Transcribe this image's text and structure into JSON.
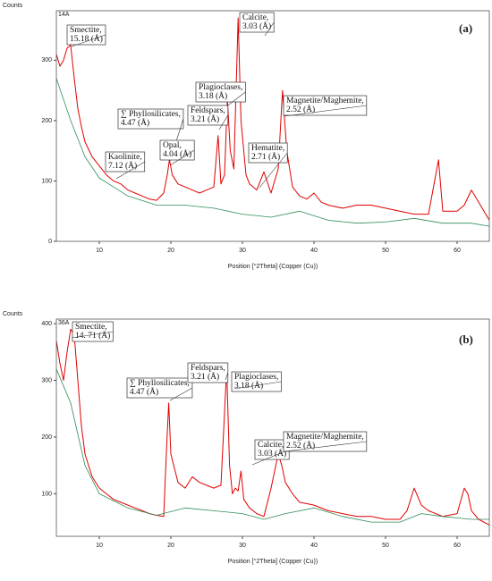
{
  "chart_data": [
    {
      "type": "line",
      "y_label": "Counts",
      "sample": "14A",
      "x_label": "Position [°2Theta] (Copper (Cu))",
      "panel_label": "(a)",
      "xlim": [
        4,
        64.5
      ],
      "ylim": [
        0,
        382
      ],
      "xticks": [
        10,
        20,
        30,
        40,
        50,
        60
      ],
      "yticks": [
        0,
        100,
        200,
        300
      ],
      "series": [
        {
          "color": "#e00000",
          "x": [
            4,
            4.5,
            5,
            5.5,
            6,
            6.5,
            7,
            7.5,
            8,
            9,
            10,
            11,
            12,
            13,
            14,
            15,
            16,
            17,
            18,
            19,
            19.5,
            19.8,
            20.2,
            21,
            22,
            23,
            24,
            25,
            26,
            26.6,
            27,
            27.5,
            27.9,
            28.3,
            28.8,
            29.4,
            29.8,
            30.5,
            31,
            32,
            33,
            34,
            35,
            35.6,
            36.2,
            37,
            38,
            39,
            40,
            41,
            42,
            44,
            46,
            48,
            50,
            52,
            54,
            56,
            57.4,
            58,
            60,
            61,
            62,
            63,
            64.5
          ],
          "values": [
            310,
            290,
            300,
            320,
            325,
            270,
            220,
            190,
            165,
            140,
            125,
            110,
            100,
            95,
            85,
            80,
            75,
            70,
            68,
            80,
            110,
            135,
            110,
            95,
            90,
            85,
            80,
            85,
            90,
            175,
            95,
            110,
            235,
            150,
            120,
            370,
            200,
            110,
            95,
            85,
            115,
            80,
            120,
            250,
            150,
            90,
            75,
            70,
            80,
            65,
            60,
            55,
            60,
            60,
            55,
            50,
            45,
            45,
            135,
            50,
            50,
            60,
            85,
            65,
            35
          ]
        },
        {
          "color": "#2e8b57",
          "x": [
            4,
            6,
            8,
            10,
            14,
            18,
            22,
            26,
            30,
            34,
            38,
            42,
            46,
            50,
            54,
            58,
            62,
            64.5
          ],
          "values": [
            270,
            200,
            140,
            105,
            75,
            60,
            60,
            55,
            45,
            40,
            50,
            35,
            30,
            32,
            38,
            30,
            30,
            25
          ]
        }
      ],
      "annotations": [
        [
          "Smectite,",
          "15.18 (Å)"
        ],
        [
          "Calcite,",
          "3.03 (Å)"
        ],
        [
          "Plagioclases,",
          "3.18 (Å)"
        ],
        [
          "Feldspars,",
          "3.21 (Å)"
        ],
        [
          "∑ Phyllosilicates,",
          "4.47 (Å)"
        ],
        [
          "Opal,",
          "4.04 (Å)"
        ],
        [
          "Kaolinite,",
          "7.12 (Å)"
        ],
        [
          "Hematite,",
          "2.71 (Å)"
        ],
        [
          "Magnetite/Maghemite,",
          "2.52 (Å)"
        ]
      ]
    },
    {
      "type": "line",
      "y_label": "Counts",
      "sample": "36A",
      "x_label": "Position [°2Theta] (Copper (Cu))",
      "panel_label": "(b)",
      "xlim": [
        4,
        64.5
      ],
      "ylim": [
        25,
        408
      ],
      "xticks": [
        10,
        20,
        30,
        40,
        50,
        60
      ],
      "yticks": [
        100,
        200,
        300,
        400
      ],
      "series": [
        {
          "color": "#e00000",
          "x": [
            4,
            4.5,
            5,
            5.5,
            6,
            6.5,
            7,
            7.5,
            8,
            9,
            10,
            11,
            12,
            13,
            14,
            15,
            16,
            17,
            18,
            19,
            19.4,
            19.7,
            20,
            21,
            22,
            23,
            24,
            25,
            26,
            27,
            27.8,
            28.2,
            28.6,
            29,
            29.4,
            29.8,
            30.2,
            31,
            32,
            33,
            34,
            35,
            35.5,
            36,
            37,
            38,
            40,
            42,
            44,
            46,
            48,
            50,
            52,
            53,
            54,
            55,
            56,
            58,
            60,
            61,
            61.5,
            62,
            63,
            64.5
          ],
          "values": [
            370,
            330,
            300,
            350,
            390,
            380,
            300,
            220,
            170,
            130,
            110,
            100,
            90,
            85,
            80,
            75,
            70,
            65,
            62,
            60,
            180,
            260,
            170,
            120,
            110,
            130,
            120,
            115,
            110,
            115,
            320,
            150,
            100,
            110,
            105,
            140,
            90,
            75,
            65,
            60,
            110,
            170,
            150,
            120,
            100,
            85,
            80,
            70,
            65,
            60,
            60,
            55,
            55,
            70,
            110,
            80,
            70,
            60,
            65,
            110,
            100,
            70,
            55,
            45
          ]
        },
        {
          "color": "#2e8b57",
          "x": [
            4,
            6,
            8,
            10,
            14,
            18,
            22,
            26,
            30,
            33,
            36,
            40,
            44,
            48,
            52,
            55,
            58,
            62,
            64.5
          ],
          "values": [
            320,
            260,
            150,
            100,
            75,
            62,
            75,
            70,
            65,
            55,
            65,
            75,
            60,
            50,
            50,
            65,
            60,
            55,
            55
          ]
        }
      ],
      "annotations": [
        [
          "Smectite,",
          "14. 71 (Å)"
        ],
        [
          "∑ Phyllosilicates,",
          "4.47 (Å)"
        ],
        [
          "Feldspars,",
          "3.21 (Å)"
        ],
        [
          "Plagioclases,",
          "3.18 (Å)"
        ],
        [
          "Calcite,",
          "3.03 (Å)"
        ],
        [
          "Magnetite/Maghemite,",
          "2.52 (Å)"
        ]
      ]
    }
  ]
}
